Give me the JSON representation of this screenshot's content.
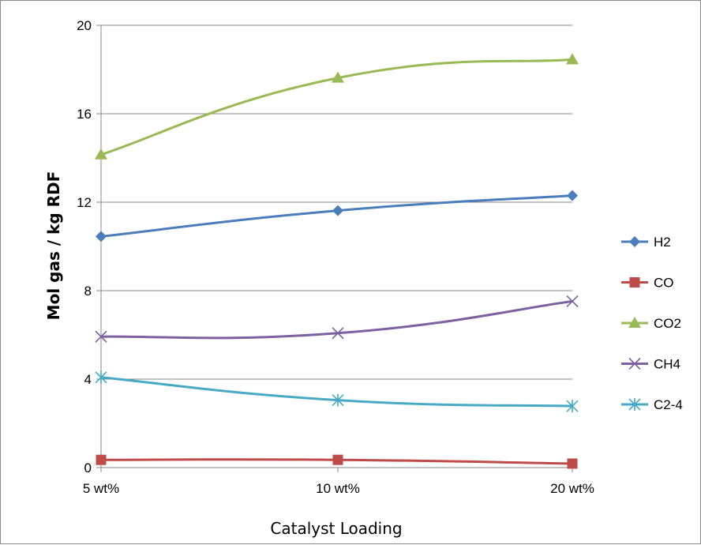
{
  "chart_data": {
    "type": "line",
    "xlabel": "Catalyst Loading",
    "ylabel": "Mol gas / kg RDF",
    "categories": [
      "5 wt%",
      "10 wt%",
      "20 wt%"
    ],
    "ylim": [
      0,
      20
    ],
    "yticks": [
      0,
      4,
      8,
      12,
      16,
      20
    ],
    "grid": "horizontal",
    "legend_position": "right",
    "smooth": true,
    "series": [
      {
        "name": "H2",
        "values": [
          10.45,
          11.62,
          12.3
        ],
        "color": "#4a7ebb",
        "marker": "diamond"
      },
      {
        "name": "CO",
        "values": [
          0.35,
          0.35,
          0.18
        ],
        "color": "#be4b48",
        "marker": "square"
      },
      {
        "name": "CO2",
        "values": [
          14.15,
          17.62,
          18.45
        ],
        "color": "#98b954",
        "marker": "triangle"
      },
      {
        "name": "CH4",
        "values": [
          5.92,
          6.08,
          7.52
        ],
        "color": "#7d60a0",
        "marker": "x"
      },
      {
        "name": "C2-4",
        "values": [
          4.08,
          3.05,
          2.78
        ],
        "color": "#46aac5",
        "marker": "asterisk"
      }
    ]
  }
}
